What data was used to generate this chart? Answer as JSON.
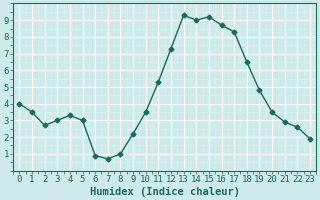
{
  "x": [
    0,
    1,
    2,
    3,
    4,
    5,
    6,
    7,
    8,
    9,
    10,
    11,
    12,
    13,
    14,
    15,
    16,
    17,
    18,
    19,
    20,
    21,
    22,
    23
  ],
  "y": [
    4.0,
    3.5,
    2.7,
    3.0,
    3.3,
    3.0,
    0.9,
    0.7,
    1.0,
    2.2,
    3.5,
    5.3,
    7.3,
    9.3,
    9.0,
    9.2,
    8.7,
    8.3,
    6.5,
    4.8,
    3.5,
    2.9,
    2.6,
    1.9
  ],
  "xlabel": "Humidex (Indice chaleur)",
  "ylim": [
    0,
    10
  ],
  "xlim": [
    -0.5,
    23.5
  ],
  "yticks": [
    1,
    2,
    3,
    4,
    5,
    6,
    7,
    8,
    9
  ],
  "xticks": [
    0,
    1,
    2,
    3,
    4,
    5,
    6,
    7,
    8,
    9,
    10,
    11,
    12,
    13,
    14,
    15,
    16,
    17,
    18,
    19,
    20,
    21,
    22,
    23
  ],
  "line_color": "#1a6b5a",
  "marker": "D",
  "marker_size": 2.5,
  "background_color": "#ceeaea",
  "grid_major_color": "#ffffff",
  "grid_minor_color": "#ddf0f0",
  "tick_label_color": "#1a6b5a",
  "xlabel_color": "#1a6b5a",
  "xlabel_fontsize": 7.5,
  "tick_fontsize": 6.5,
  "line_width": 1.0,
  "spine_color": "#1a6b5a"
}
